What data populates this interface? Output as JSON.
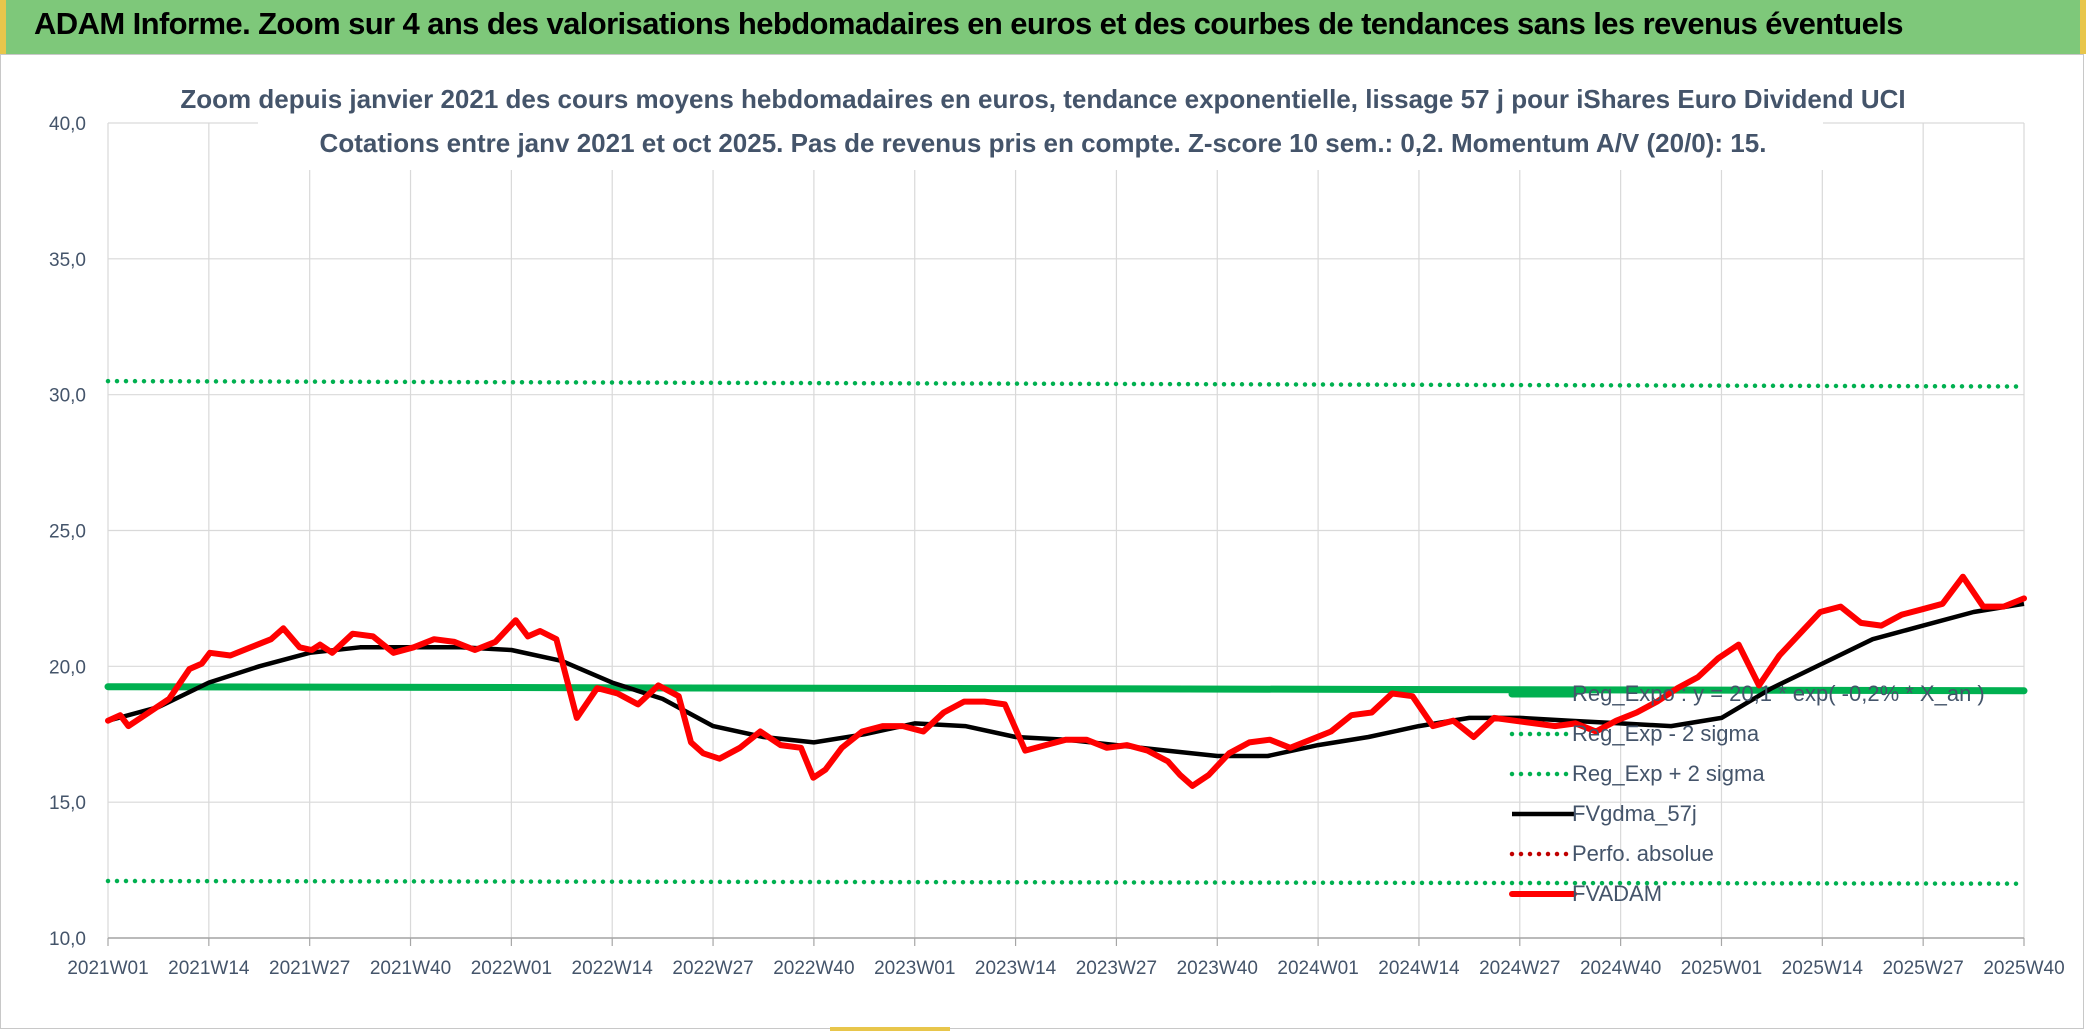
{
  "header": {
    "title": "ADAM Informe. Zoom sur 4 ans des valorisations hebdomadaires en euros et des courbes de tendances sans les revenus éventuels"
  },
  "colors": {
    "banner": "#7ec87a",
    "accent": "#e8c64b",
    "regression": "#00b050",
    "fvgdma": "#000000",
    "fvadam": "#ff0000",
    "perfo": "#c00000",
    "grid": "#d9d9d9",
    "text": "#44546a"
  },
  "chart_data": {
    "type": "line",
    "title": "Zoom depuis janvier 2021 des cours moyens hebdomadaires en euros, tendance exponentielle, lissage 57 j pour iShares Euro Dividend UCI",
    "subtitle": "Cotations entre janv 2021 et oct 2025. Pas de revenus pris en compte. Z-score 10 sem.: 0,2. Momentum A/V (20/0): 15.",
    "xlabel": "",
    "ylabel": "",
    "ylim": [
      10,
      40
    ],
    "yticks": [
      "10,0",
      "15,0",
      "20,0",
      "25,0",
      "30,0",
      "35,0",
      "40,0"
    ],
    "xticks": [
      "2021W01",
      "2021W14",
      "2021W27",
      "2021W40",
      "2022W01",
      "2022W14",
      "2022W27",
      "2022W40",
      "2023W01",
      "2023W14",
      "2023W27",
      "2023W40",
      "2024W01",
      "2024W14",
      "2024W27",
      "2024W40",
      "2025W01",
      "2025W14",
      "2025W27",
      "2025W40"
    ],
    "grid": true,
    "legend_position": "right",
    "series": [
      {
        "name": "Reg_Expo : y = 20,1 * exp( -0,2% * X_an )",
        "style": "solid-thick",
        "color": "#00b050",
        "points": [
          [
            0,
            19.25
          ],
          [
            19,
            19.1
          ]
        ]
      },
      {
        "name": "Reg_Exp - 2 sigma",
        "style": "dotted",
        "color": "#00b050",
        "points": [
          [
            0,
            12.1
          ],
          [
            19,
            12.0
          ]
        ]
      },
      {
        "name": "Reg_Exp + 2 sigma",
        "style": "dotted",
        "color": "#00b050",
        "points": [
          [
            0,
            30.5
          ],
          [
            19,
            30.3
          ]
        ]
      },
      {
        "name": "FVgdma_57j",
        "style": "solid",
        "color": "#000000",
        "points": [
          [
            0,
            18.0
          ],
          [
            0.5,
            18.5
          ],
          [
            1,
            19.4
          ],
          [
            1.5,
            20.0
          ],
          [
            2,
            20.5
          ],
          [
            2.5,
            20.7
          ],
          [
            3,
            20.7
          ],
          [
            3.5,
            20.7
          ],
          [
            4,
            20.6
          ],
          [
            4.5,
            20.2
          ],
          [
            5,
            19.4
          ],
          [
            5.5,
            18.8
          ],
          [
            6,
            17.8
          ],
          [
            6.5,
            17.4
          ],
          [
            7,
            17.2
          ],
          [
            7.5,
            17.5
          ],
          [
            8,
            17.9
          ],
          [
            8.5,
            17.8
          ],
          [
            9,
            17.4
          ],
          [
            9.5,
            17.3
          ],
          [
            10,
            17.1
          ],
          [
            10.5,
            16.9
          ],
          [
            11,
            16.7
          ],
          [
            11.5,
            16.7
          ],
          [
            12,
            17.1
          ],
          [
            12.5,
            17.4
          ],
          [
            13,
            17.8
          ],
          [
            13.5,
            18.1
          ],
          [
            14,
            18.1
          ],
          [
            14.5,
            18.0
          ],
          [
            15,
            17.9
          ],
          [
            15.5,
            17.8
          ],
          [
            16,
            18.1
          ],
          [
            16.5,
            19.2
          ],
          [
            17,
            20.1
          ],
          [
            17.5,
            21.0
          ],
          [
            18,
            21.5
          ],
          [
            18.5,
            22.0
          ],
          [
            19,
            22.3
          ]
        ]
      },
      {
        "name": "Perfo. absolue",
        "style": "dotted",
        "color": "#c00000",
        "points": []
      },
      {
        "name": "FVADAM",
        "style": "solid-thick",
        "color": "#ff0000",
        "points": [
          [
            0,
            18.0
          ],
          [
            0.15,
            18.2
          ],
          [
            0.25,
            17.8
          ],
          [
            0.5,
            18.3
          ],
          [
            0.75,
            18.8
          ],
          [
            1,
            19.9
          ],
          [
            1.15,
            20.1
          ],
          [
            1.25,
            20.5
          ],
          [
            1.5,
            20.4
          ],
          [
            1.75,
            20.7
          ],
          [
            2,
            21.0
          ],
          [
            2.15,
            21.4
          ],
          [
            2.35,
            20.7
          ],
          [
            2.5,
            20.6
          ],
          [
            2.6,
            20.8
          ],
          [
            2.75,
            20.5
          ],
          [
            3,
            21.2
          ],
          [
            3.25,
            21.1
          ],
          [
            3.5,
            20.5
          ],
          [
            3.75,
            20.7
          ],
          [
            4,
            21.0
          ],
          [
            4.25,
            20.9
          ],
          [
            4.5,
            20.6
          ],
          [
            4.75,
            20.9
          ],
          [
            5,
            21.7
          ],
          [
            5.15,
            21.1
          ],
          [
            5.3,
            21.3
          ],
          [
            5.5,
            21.0
          ],
          [
            5.75,
            18.1
          ],
          [
            6,
            19.2
          ],
          [
            6.25,
            19.0
          ],
          [
            6.5,
            18.6
          ],
          [
            6.75,
            19.3
          ],
          [
            7,
            18.9
          ],
          [
            7.15,
            17.2
          ],
          [
            7.3,
            16.8
          ],
          [
            7.5,
            16.6
          ],
          [
            7.75,
            17.0
          ],
          [
            8,
            17.6
          ],
          [
            8.25,
            17.1
          ],
          [
            8.5,
            17.0
          ],
          [
            8.65,
            15.9
          ],
          [
            8.8,
            16.2
          ],
          [
            9,
            17.0
          ],
          [
            9.25,
            17.6
          ],
          [
            9.5,
            17.8
          ],
          [
            9.75,
            17.8
          ],
          [
            10,
            17.6
          ],
          [
            10.25,
            18.3
          ],
          [
            10.5,
            18.7
          ],
          [
            10.75,
            18.7
          ],
          [
            11,
            18.6
          ],
          [
            11.25,
            16.9
          ],
          [
            11.5,
            17.1
          ],
          [
            11.75,
            17.3
          ],
          [
            12,
            17.3
          ],
          [
            12.25,
            17.0
          ],
          [
            12.5,
            17.1
          ],
          [
            12.75,
            16.9
          ],
          [
            13,
            16.5
          ],
          [
            13.15,
            16.0
          ],
          [
            13.3,
            15.6
          ],
          [
            13.5,
            16.0
          ],
          [
            13.75,
            16.8
          ],
          [
            14,
            17.2
          ],
          [
            14.25,
            17.3
          ],
          [
            14.5,
            17.0
          ],
          [
            14.75,
            17.3
          ],
          [
            15,
            17.6
          ],
          [
            15.25,
            18.2
          ],
          [
            15.5,
            18.3
          ],
          [
            15.75,
            19.0
          ],
          [
            16,
            18.9
          ],
          [
            16.25,
            17.8
          ],
          [
            16.5,
            18.0
          ],
          [
            16.75,
            17.4
          ],
          [
            17,
            18.1
          ],
          [
            17.25,
            18.0
          ],
          [
            17.5,
            17.9
          ],
          [
            17.75,
            17.8
          ],
          [
            18,
            17.9
          ],
          [
            18.25,
            17.6
          ],
          [
            18.5,
            18.0
          ],
          [
            18.75,
            18.3
          ],
          [
            19,
            18.7
          ],
          [
            19.25,
            19.2
          ],
          [
            19.5,
            19.6
          ],
          [
            19.75,
            20.3
          ],
          [
            20,
            20.8
          ],
          [
            20.25,
            19.3
          ],
          [
            20.5,
            20.4
          ],
          [
            20.75,
            21.2
          ],
          [
            21,
            22.0
          ],
          [
            21.25,
            22.2
          ],
          [
            21.5,
            21.6
          ],
          [
            21.75,
            21.5
          ],
          [
            22,
            21.9
          ],
          [
            22.25,
            22.1
          ],
          [
            22.5,
            22.3
          ],
          [
            22.75,
            23.3
          ],
          [
            23,
            22.2
          ],
          [
            23.25,
            22.2
          ],
          [
            23.5,
            22.5
          ]
        ]
      }
    ]
  }
}
